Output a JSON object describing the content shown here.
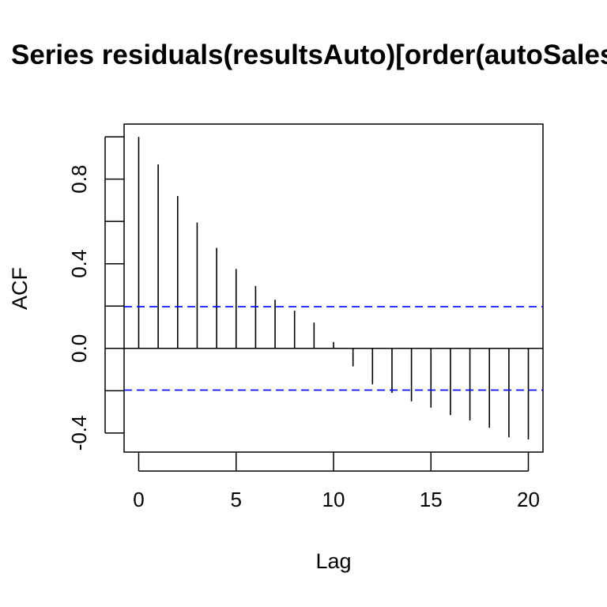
{
  "chart_data": {
    "type": "bar",
    "title": "Series  residuals(resultsAuto)[order(autoSales$year)]",
    "xlabel": "Lag",
    "ylabel": "ACF",
    "x": [
      0,
      1,
      2,
      3,
      4,
      5,
      6,
      7,
      8,
      9,
      10,
      11,
      12,
      13,
      14,
      15,
      16,
      17,
      18,
      19,
      20
    ],
    "values": [
      1.0,
      0.87,
      0.72,
      0.595,
      0.475,
      0.375,
      0.295,
      0.23,
      0.178,
      0.122,
      0.03,
      -0.085,
      -0.17,
      -0.21,
      -0.25,
      -0.28,
      -0.315,
      -0.34,
      -0.375,
      -0.42,
      -0.43
    ],
    "xlim": [
      -0.75,
      20.75
    ],
    "ylim": [
      -0.49,
      1.06
    ],
    "x_ticks": [
      0,
      5,
      10,
      15,
      20
    ],
    "x_tick_labels": [
      "0",
      "5",
      "10",
      "15",
      "20"
    ],
    "y_ticks": [
      -0.4,
      -0.2,
      0.0,
      0.2,
      0.4,
      0.6,
      0.8,
      1.0
    ],
    "y_tick_labels": [
      {
        "value": -0.4,
        "label": "-0.4"
      },
      {
        "value": 0.0,
        "label": "0.0"
      },
      {
        "value": 0.4,
        "label": "0.4"
      },
      {
        "value": 0.8,
        "label": "0.8"
      }
    ],
    "confidence_bound": 0.197,
    "colors": {
      "bars": "#000000",
      "confidence_lines": "#0000ff",
      "zero_line": "#000000",
      "frame": "#000000"
    },
    "grid": false,
    "legend": "none"
  }
}
